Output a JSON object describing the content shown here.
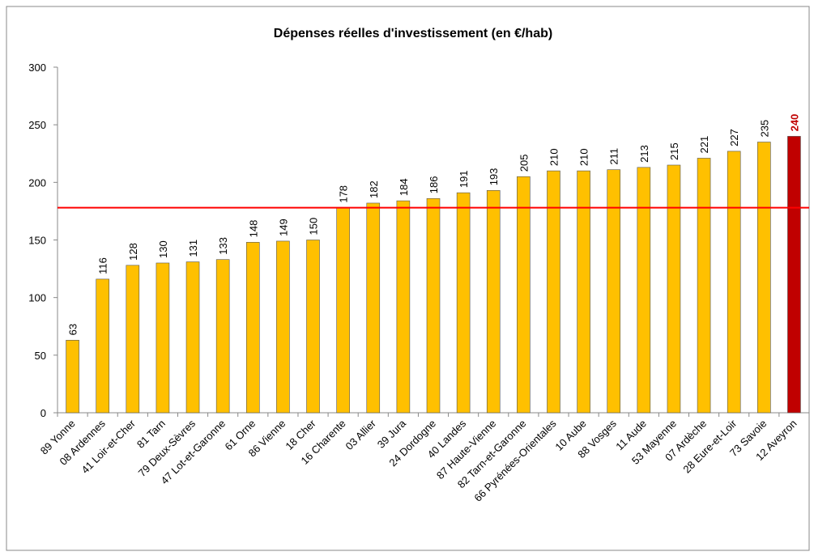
{
  "chart_data": {
    "type": "bar",
    "title": "Dépenses réelles d'investissement (en €/hab)",
    "categories": [
      "89 Yonne",
      "08 Ardennes",
      "41 Loir-et-Cher",
      "81 Tarn",
      "79 Deux-Sèvres",
      "47 Lot-et-Garonne",
      "61 Orne",
      "86 Vienne",
      "18 Cher",
      "16 Charente",
      "03 Allier",
      "39 Jura",
      "24 Dordogne",
      "40 Landes",
      "87 Haute-Vienne",
      "82 Tarn-et-Garonne",
      "66 Pyrénées-Orientales",
      "10 Aube",
      "88 Vosges",
      "11 Aude",
      "53 Mayenne",
      "07 Ardèche",
      "28 Eure-et-Loir",
      "73 Savoie",
      "12 Aveyron"
    ],
    "values": [
      63,
      116,
      128,
      130,
      131,
      133,
      148,
      149,
      150,
      178,
      182,
      184,
      186,
      191,
      193,
      205,
      210,
      210,
      211,
      213,
      215,
      221,
      227,
      235,
      240
    ],
    "colors": [
      "#ffc000",
      "#ffc000",
      "#ffc000",
      "#ffc000",
      "#ffc000",
      "#ffc000",
      "#ffc000",
      "#ffc000",
      "#ffc000",
      "#ffc000",
      "#ffc000",
      "#ffc000",
      "#ffc000",
      "#ffc000",
      "#ffc000",
      "#ffc000",
      "#ffc000",
      "#ffc000",
      "#ffc000",
      "#ffc000",
      "#ffc000",
      "#ffc000",
      "#ffc000",
      "#ffc000",
      "#c00000"
    ],
    "reference_line": 178,
    "reference_color": "#ff0000",
    "ylim": [
      0,
      300
    ],
    "yticks": [
      0,
      50,
      100,
      150,
      200,
      250,
      300
    ]
  }
}
